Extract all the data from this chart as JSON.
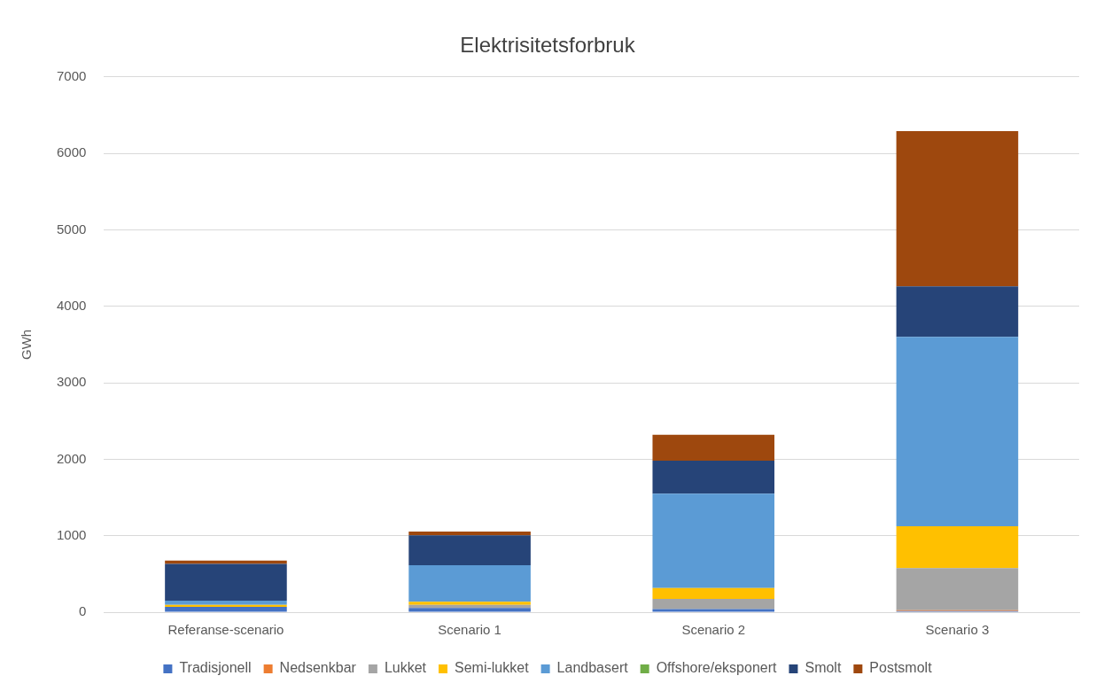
{
  "chart_data": {
    "type": "bar",
    "title": "Elektrisitetsforbruk",
    "ylabel": "GWh",
    "stacked": true,
    "categories": [
      "Referanse-scenario",
      "Scenario 1",
      "Scenario 2",
      "Scenario 3"
    ],
    "series": [
      {
        "name": "Tradisjonell",
        "color": "#4472c4",
        "values": [
          70,
          55,
          40,
          15
        ]
      },
      {
        "name": "Nedsenkbar",
        "color": "#ed7d31",
        "values": [
          0,
          0,
          0,
          10
        ]
      },
      {
        "name": "Lukket",
        "color": "#a5a5a5",
        "values": [
          0,
          40,
          135,
          550
        ]
      },
      {
        "name": "Semi-lukket",
        "color": "#ffc000",
        "values": [
          25,
          40,
          140,
          550
        ]
      },
      {
        "name": "Landbasert",
        "color": "#5b9bd5",
        "values": [
          55,
          480,
          1235,
          2475
        ]
      },
      {
        "name": "Offshore/eksponert",
        "color": "#70ad47",
        "values": [
          0,
          0,
          0,
          0
        ]
      },
      {
        "name": "Smolt",
        "color": "#264478",
        "values": [
          480,
          390,
          430,
          660
        ]
      },
      {
        "name": "Postsmolt",
        "color": "#9e480e",
        "values": [
          45,
          50,
          340,
          2030
        ]
      }
    ],
    "ylim": [
      0,
      7000
    ],
    "yticks": [
      0,
      1000,
      2000,
      3000,
      4000,
      5000,
      6000,
      7000
    ],
    "grid": "y",
    "legend": "bottom"
  }
}
